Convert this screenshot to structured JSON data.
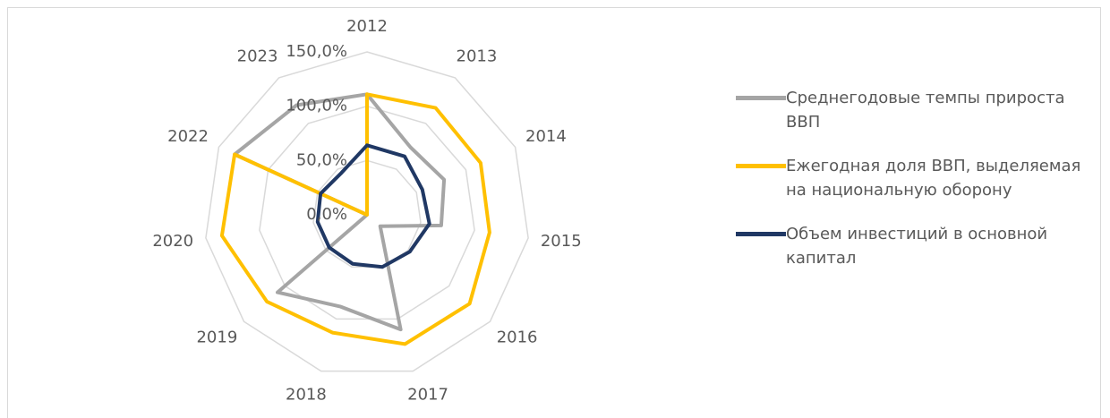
{
  "chart_data": {
    "type": "radar",
    "categories": [
      "2012",
      "2013",
      "2014",
      "2015",
      "2016",
      "2017",
      "2018",
      "2019",
      "2020",
      "2022",
      "2023"
    ],
    "series": [
      {
        "name": "Среднегодовые темпы прироста ВВП",
        "color": "#a5a5a5",
        "values": [
          111,
          74,
          78,
          69,
          16,
          110,
          88,
          109,
          0,
          134,
          120
        ]
      },
      {
        "name": "Ежегодная доля ВВП, выделяемая на национальную оборону",
        "color": "#ffc000",
        "values": [
          111,
          117,
          115,
          114,
          125,
          124,
          113,
          122,
          135,
          134,
          0
        ]
      },
      {
        "name": "Объем инвестиций в основной капитал",
        "color": "#203864",
        "values": [
          64,
          64,
          56,
          58,
          52,
          50,
          47,
          46,
          46,
          47,
          45
        ]
      }
    ],
    "ylim": [
      0,
      150
    ],
    "yticks": [
      {
        "value": 0,
        "label": "0,0%"
      },
      {
        "value": 50,
        "label": "50,0%"
      },
      {
        "value": 100,
        "label": "100,0%"
      },
      {
        "value": 150,
        "label": "150,0%"
      }
    ],
    "grid": true
  }
}
